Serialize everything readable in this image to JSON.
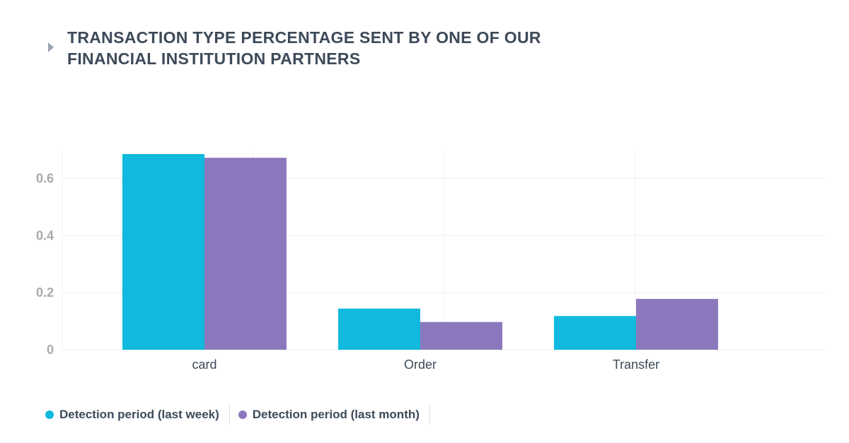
{
  "title": "TRANSACTION TYPE PERCENTAGE SENT BY ONE OF OUR FINANCIAL INSTITUTION PARTNERS",
  "icons": {
    "title_arrow": "caret-right-icon"
  },
  "colors": {
    "series_week": "#10b9dd",
    "series_month": "#8c78bd",
    "grid": "#efefef",
    "title": "#3d4a59",
    "tick": "#a9a9ad"
  },
  "chart_data": {
    "type": "bar",
    "title": "TRANSACTION TYPE PERCENTAGE SENT BY ONE OF OUR FINANCIAL INSTITUTION PARTNERS",
    "xlabel": "",
    "ylabel": "",
    "categories": [
      "card",
      "Order",
      "Transfer"
    ],
    "series": [
      {
        "name": "Detection period (last week)",
        "values": [
          0.685,
          0.144,
          0.118
        ]
      },
      {
        "name": "Detection period (last month)",
        "values": [
          0.672,
          0.097,
          0.178
        ]
      }
    ],
    "ylim": [
      0,
      0.7
    ],
    "yticks": [
      0,
      0.2,
      0.4,
      0.6
    ],
    "ytick_labels": [
      "0",
      "0.2",
      "0.4",
      "0.6"
    ],
    "grid": true,
    "legend_position": "bottom-left"
  },
  "legend": {
    "items": [
      {
        "label": "Detection period (last week)",
        "color": "#10b9dd"
      },
      {
        "label": "Detection period (last month)",
        "color": "#8c78bd"
      }
    ]
  }
}
